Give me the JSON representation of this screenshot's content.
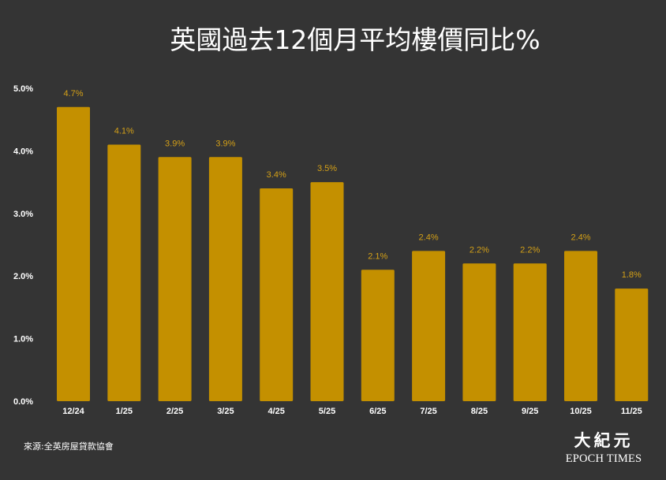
{
  "chart_data": {
    "type": "bar",
    "title": "英國過去12個月平均樓價同比%",
    "categories": [
      "12/24",
      "1/25",
      "2/25",
      "3/25",
      "4/25",
      "5/25",
      "6/25",
      "7/25",
      "8/25",
      "9/25",
      "10/25",
      "11/25"
    ],
    "values": [
      4.7,
      4.1,
      3.9,
      3.9,
      3.4,
      3.5,
      2.1,
      2.4,
      2.2,
      2.2,
      2.4,
      1.8
    ],
    "value_labels": [
      "4.7%",
      "4.1%",
      "3.9%",
      "3.9%",
      "3.4%",
      "3.5%",
      "2.1%",
      "2.4%",
      "2.2%",
      "2.2%",
      "2.4%",
      "1.8%"
    ],
    "ylim": [
      0,
      5
    ],
    "yticks": [
      "0.0%",
      "1.0%",
      "2.0%",
      "3.0%",
      "4.0%",
      "5.0%"
    ],
    "xlabel": "",
    "ylabel": "",
    "grid": false,
    "bar_color": "#c49000",
    "label_color": "#d4a017",
    "background": "#343434"
  },
  "source": "來源:全英房屋貸款協會",
  "logo": {
    "cjk": "大紀元",
    "latin": "EPOCH TIMES"
  }
}
